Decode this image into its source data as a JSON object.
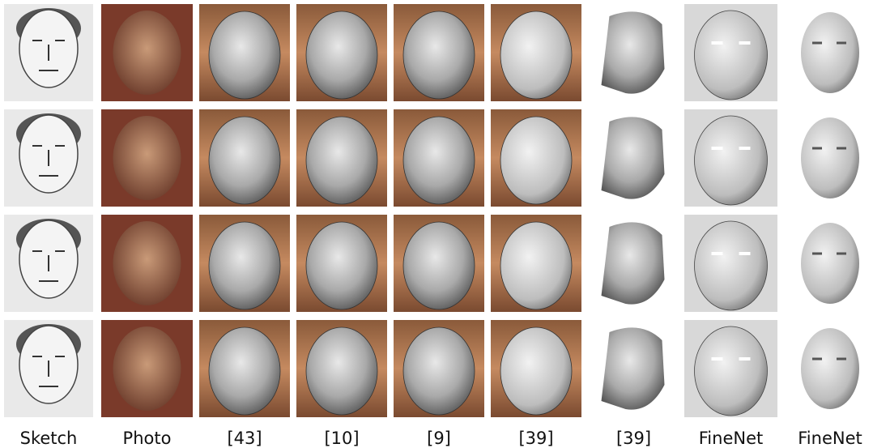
{
  "columns": [
    "Sketch",
    "Photo",
    "[43]",
    "[10]",
    "[9]",
    "[39]",
    "[39]",
    "FineNet",
    "FineNet"
  ]
}
